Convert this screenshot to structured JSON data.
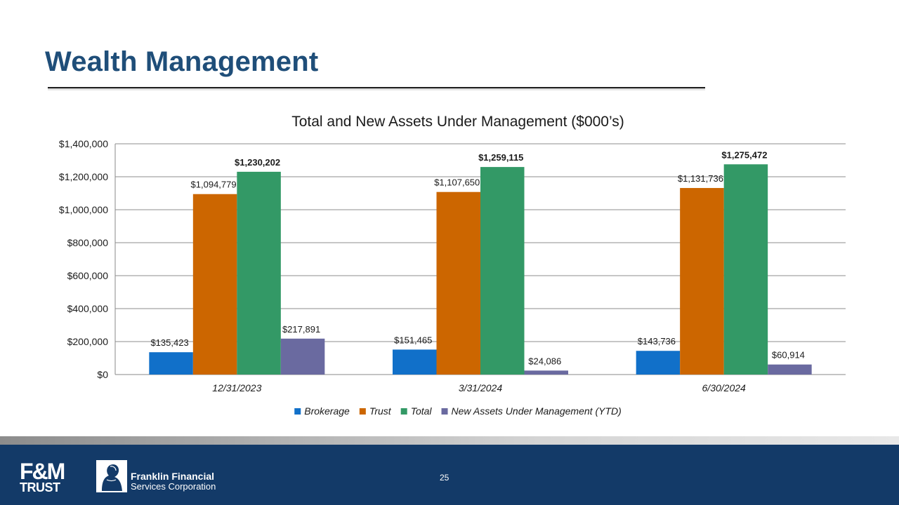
{
  "slide": {
    "title": "Wealth Management",
    "page_number": "25"
  },
  "logos": {
    "fm_line1": "F&M",
    "fm_line2": "TRUST",
    "ffsc_line1": "Franklin Financial",
    "ffsc_line2": "Services Corporation"
  },
  "colors": {
    "title": "#1f4e79",
    "footer": "#133a68",
    "brokerage": "#1170c9",
    "trust": "#cc6600",
    "total": "#339966",
    "new_aum": "#6a6aa0"
  },
  "chart_data": {
    "type": "bar",
    "title": "Total and New Assets Under Management ($000’s)",
    "categories": [
      "12/31/2023",
      "3/31/2024",
      "6/30/2024"
    ],
    "series": [
      {
        "name": "Brokerage",
        "color": "#1170c9",
        "values": [
          135423,
          151465,
          143736
        ],
        "labels": [
          "$135,423",
          "$151,465",
          "$143,736"
        ],
        "label_bold": false
      },
      {
        "name": "Trust",
        "color": "#cc6600",
        "values": [
          1094779,
          1107650,
          1131736
        ],
        "labels": [
          "$1,094,779",
          "$1,107,650",
          "$1,131,736"
        ],
        "label_bold": false
      },
      {
        "name": "Total",
        "color": "#339966",
        "values": [
          1230202,
          1259115,
          1275472
        ],
        "labels": [
          "$1,230,202",
          "$1,259,115",
          "$1,275,472"
        ],
        "label_bold": true
      },
      {
        "name": "New Assets Under Management (YTD)",
        "color": "#6a6aa0",
        "values": [
          217891,
          24086,
          60914
        ],
        "labels": [
          "$217,891",
          "$24,086",
          "$60,914"
        ],
        "label_bold": false
      }
    ],
    "ylim": [
      0,
      1400000
    ],
    "yticks": [
      {
        "value": 0,
        "label": "$0"
      },
      {
        "value": 200000,
        "label": "$200,000"
      },
      {
        "value": 400000,
        "label": "$400,000"
      },
      {
        "value": 600000,
        "label": "$600,000"
      },
      {
        "value": 800000,
        "label": "$800,000"
      },
      {
        "value": 1000000,
        "label": "$1,000,000"
      },
      {
        "value": 1200000,
        "label": "$1,200,000"
      },
      {
        "value": 1400000,
        "label": "$1,400,000"
      }
    ],
    "grid": true,
    "legend_position": "bottom",
    "xlabel": "",
    "ylabel": ""
  }
}
